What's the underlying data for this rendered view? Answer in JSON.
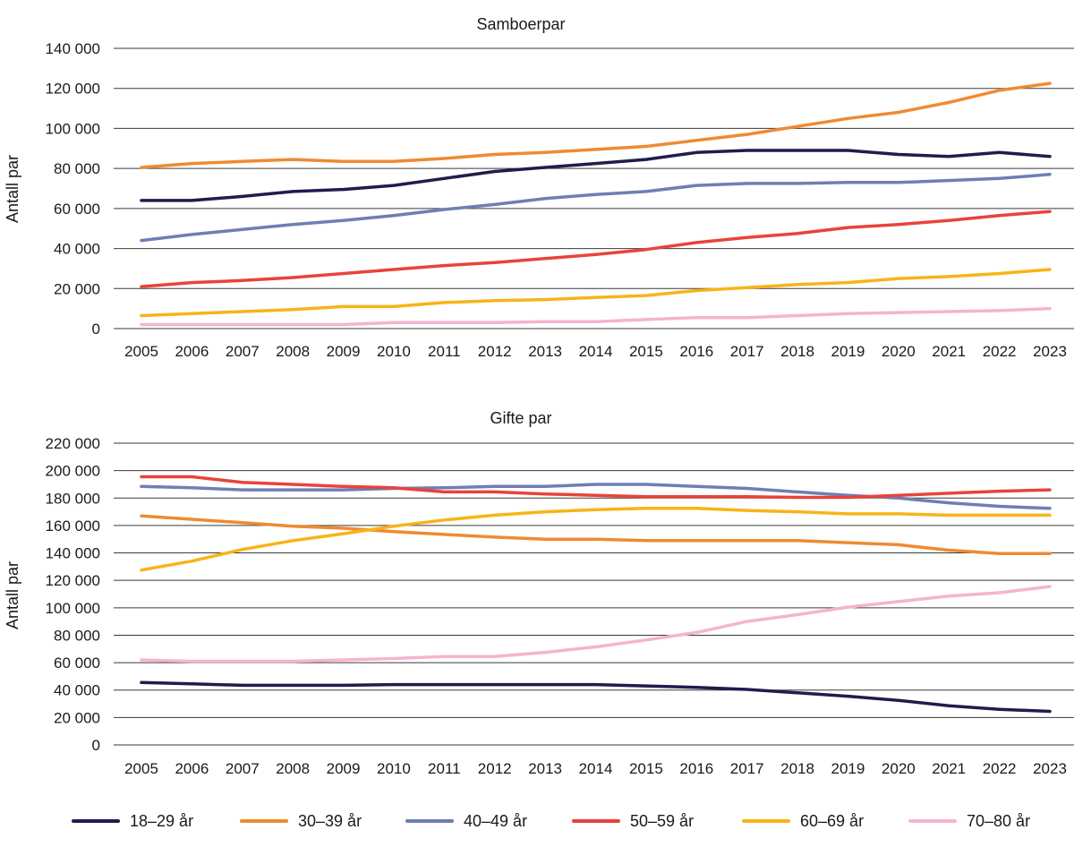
{
  "chart_data": [
    {
      "type": "line",
      "title": "Samboerpar",
      "xlabel": "",
      "ylabel": "Antall par",
      "ylim": [
        0,
        140000
      ],
      "yticks": [
        0,
        20000,
        40000,
        60000,
        80000,
        100000,
        120000,
        140000
      ],
      "ytick_labels": [
        "0",
        "20 000",
        "40 000",
        "60 000",
        "80 000",
        "100 000",
        "120 000",
        "140 000"
      ],
      "grid": true,
      "x": [
        "2005",
        "2006",
        "2007",
        "2008",
        "2009",
        "2010",
        "2011",
        "2012",
        "2013",
        "2014",
        "2015",
        "2016",
        "2017",
        "2018",
        "2019",
        "2020",
        "2021",
        "2022",
        "2023"
      ],
      "series": [
        {
          "name": "18–29 år",
          "color": "#1f1d4e",
          "values": [
            64000,
            64000,
            66000,
            68500,
            69500,
            71500,
            75000,
            78500,
            80500,
            82500,
            84500,
            88000,
            89000,
            89000,
            89000,
            87000,
            86000,
            88000,
            86000
          ]
        },
        {
          "name": "30–39 år",
          "color": "#f08a33",
          "values": [
            80500,
            82500,
            83500,
            84500,
            83500,
            83500,
            85000,
            87000,
            88000,
            89500,
            91000,
            94000,
            97000,
            101000,
            105000,
            108000,
            113000,
            119000,
            122500
          ]
        },
        {
          "name": "40–49 år",
          "color": "#6e7fb4",
          "values": [
            44000,
            47000,
            49500,
            52000,
            54000,
            56500,
            59500,
            62000,
            65000,
            67000,
            68500,
            71500,
            72500,
            72500,
            73000,
            73000,
            74000,
            75000,
            77000
          ]
        },
        {
          "name": "50–59 år",
          "color": "#e8433a",
          "values": [
            21000,
            23000,
            24000,
            25500,
            27500,
            29500,
            31500,
            33000,
            35000,
            37000,
            39500,
            43000,
            45500,
            47500,
            50500,
            52000,
            54000,
            56500,
            58500
          ]
        },
        {
          "name": "60–69 år",
          "color": "#f8b417",
          "values": [
            6500,
            7500,
            8500,
            9500,
            11000,
            11000,
            13000,
            14000,
            14500,
            15500,
            16500,
            19000,
            20500,
            22000,
            23000,
            25000,
            26000,
            27500,
            29500
          ]
        },
        {
          "name": "70–80 år",
          "color": "#f5b3d2",
          "values": [
            2000,
            2000,
            2000,
            2000,
            2000,
            3000,
            3000,
            3000,
            3500,
            3500,
            4500,
            5500,
            5500,
            6500,
            7500,
            8000,
            8500,
            9000,
            10000
          ]
        }
      ]
    },
    {
      "type": "line",
      "title": "Gifte par",
      "xlabel": "",
      "ylabel": "Antall par",
      "ylim": [
        0,
        220000
      ],
      "yticks": [
        0,
        20000,
        40000,
        60000,
        80000,
        100000,
        120000,
        140000,
        160000,
        180000,
        200000,
        220000
      ],
      "ytick_labels": [
        "0",
        "20 000",
        "40 000",
        "60 000",
        "80 000",
        "100 000",
        "120 000",
        "140 000",
        "160 000",
        "180 000",
        "200 000",
        "220 000"
      ],
      "grid": true,
      "x": [
        "2005",
        "2006",
        "2007",
        "2008",
        "2009",
        "2010",
        "2011",
        "2012",
        "2013",
        "2014",
        "2015",
        "2016",
        "2017",
        "2018",
        "2019",
        "2020",
        "2021",
        "2022",
        "2023"
      ],
      "series": [
        {
          "name": "18–29 år",
          "color": "#1f1d4e",
          "values": [
            45500,
            44500,
            43500,
            43500,
            43500,
            44000,
            44000,
            44000,
            44000,
            44000,
            43000,
            42000,
            40500,
            38000,
            35500,
            32500,
            28500,
            26000,
            24500
          ]
        },
        {
          "name": "30–39 år",
          "color": "#f08a33",
          "values": [
            167000,
            164500,
            162000,
            159500,
            158000,
            155500,
            153500,
            151500,
            150000,
            150000,
            149000,
            149000,
            149000,
            149000,
            147500,
            146000,
            142000,
            139500,
            139500
          ]
        },
        {
          "name": "40–49 år",
          "color": "#6e7fb4",
          "values": [
            188500,
            187500,
            186000,
            186000,
            186000,
            187000,
            187500,
            188500,
            188500,
            190000,
            190000,
            188500,
            187000,
            184500,
            182000,
            180000,
            176500,
            174000,
            172500
          ]
        },
        {
          "name": "50–59 år",
          "color": "#e8433a",
          "values": [
            195500,
            195500,
            191500,
            190000,
            188500,
            187500,
            184500,
            184500,
            183000,
            182000,
            181000,
            181000,
            181000,
            180500,
            180500,
            182000,
            183500,
            185000,
            186000
          ]
        },
        {
          "name": "60–69 år",
          "color": "#f8b417",
          "values": [
            127500,
            134000,
            142500,
            149000,
            154000,
            159500,
            164000,
            167500,
            170000,
            171500,
            172500,
            172500,
            171000,
            170000,
            168500,
            168500,
            167500,
            167500,
            167500
          ]
        },
        {
          "name": "70–80 år",
          "color": "#f5b3d2",
          "values": [
            62000,
            61000,
            61000,
            61000,
            62000,
            63000,
            64500,
            64500,
            67500,
            71500,
            76500,
            82000,
            90000,
            95000,
            100500,
            104500,
            108500,
            111000,
            115500
          ]
        }
      ]
    }
  ],
  "legend": {
    "placement": "bottom",
    "items": [
      {
        "label": "18–29 år",
        "color": "#1f1d4e"
      },
      {
        "label": "30–39 år",
        "color": "#f08a33"
      },
      {
        "label": "40–49 år",
        "color": "#6e7fb4"
      },
      {
        "label": "50–59 år",
        "color": "#e8433a"
      },
      {
        "label": "60–69 år",
        "color": "#f8b417"
      },
      {
        "label": "70–80 år",
        "color": "#f5b3d2"
      }
    ]
  }
}
